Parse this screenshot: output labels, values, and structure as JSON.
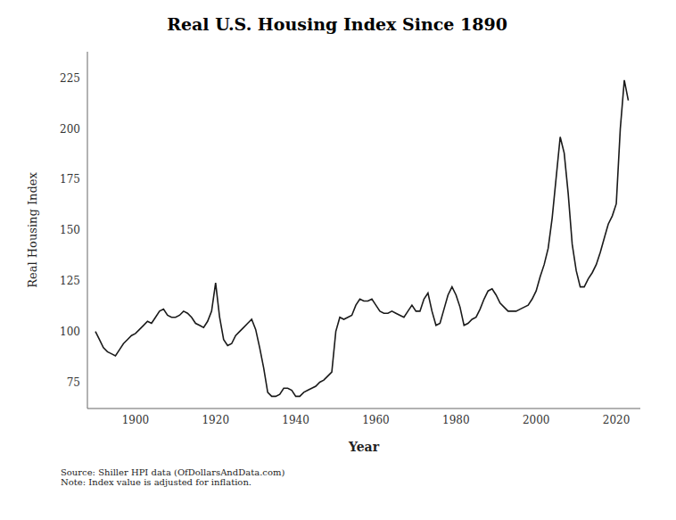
{
  "chart_data": {
    "type": "line",
    "title": "Real U.S. Housing Index Since 1890",
    "xlabel": "Year",
    "ylabel": "Real Housing Index",
    "annotations": [
      "Source: Shiller HPI data (OfDollarsAndData.com)",
      "Note: Index value is adjusted for inflation."
    ],
    "color": "#1a1a1a",
    "xlim": [
      1888,
      2026
    ],
    "ylim": [
      62,
      238
    ],
    "xticks": [
      1900,
      1920,
      1940,
      1960,
      1980,
      2000,
      2020
    ],
    "yticks": [
      75,
      100,
      125,
      150,
      175,
      200,
      225
    ],
    "grid": false,
    "x": [
      1890,
      1891,
      1892,
      1893,
      1894,
      1895,
      1896,
      1897,
      1898,
      1899,
      1900,
      1901,
      1902,
      1903,
      1904,
      1905,
      1906,
      1907,
      1908,
      1909,
      1910,
      1911,
      1912,
      1913,
      1914,
      1915,
      1916,
      1917,
      1918,
      1919,
      1920,
      1921,
      1922,
      1923,
      1924,
      1925,
      1926,
      1927,
      1928,
      1929,
      1930,
      1931,
      1932,
      1933,
      1934,
      1935,
      1936,
      1937,
      1938,
      1939,
      1940,
      1941,
      1942,
      1943,
      1944,
      1945,
      1946,
      1947,
      1948,
      1949,
      1950,
      1951,
      1952,
      1953,
      1954,
      1955,
      1956,
      1957,
      1958,
      1959,
      1960,
      1961,
      1962,
      1963,
      1964,
      1965,
      1966,
      1967,
      1968,
      1969,
      1970,
      1971,
      1972,
      1973,
      1974,
      1975,
      1976,
      1977,
      1978,
      1979,
      1980,
      1981,
      1982,
      1983,
      1984,
      1985,
      1986,
      1987,
      1988,
      1989,
      1990,
      1991,
      1992,
      1993,
      1994,
      1995,
      1996,
      1997,
      1998,
      1999,
      2000,
      2001,
      2002,
      2003,
      2004,
      2005,
      2006,
      2007,
      2008,
      2009,
      2010,
      2011,
      2012,
      2013,
      2014,
      2015,
      2016,
      2017,
      2018,
      2019,
      2020,
      2021,
      2022,
      2023
    ],
    "values": [
      100,
      96,
      92,
      90,
      89,
      88,
      91,
      94,
      96,
      98,
      99,
      101,
      103,
      105,
      104,
      107,
      110,
      111,
      108,
      107,
      107,
      108,
      110,
      109,
      107,
      104,
      103,
      102,
      105,
      110,
      124,
      107,
      96,
      93,
      94,
      98,
      100,
      102,
      104,
      106,
      101,
      92,
      82,
      70,
      68,
      68,
      69,
      72,
      72,
      71,
      68,
      68,
      70,
      71,
      72,
      73,
      75,
      76,
      78,
      80,
      100,
      107,
      106,
      107,
      108,
      113,
      116,
      115,
      115,
      116,
      113,
      110,
      109,
      109,
      110,
      109,
      108,
      107,
      110,
      113,
      110,
      110,
      116,
      119,
      110,
      103,
      104,
      111,
      118,
      122,
      118,
      112,
      103,
      104,
      106,
      107,
      111,
      116,
      120,
      121,
      118,
      114,
      112,
      110,
      110,
      110,
      111,
      112,
      113,
      116,
      120,
      127,
      133,
      141,
      156,
      176,
      196,
      188,
      168,
      143,
      130,
      122,
      122,
      126,
      129,
      133,
      139,
      146,
      153,
      157,
      163,
      200,
      224,
      214
    ]
  }
}
